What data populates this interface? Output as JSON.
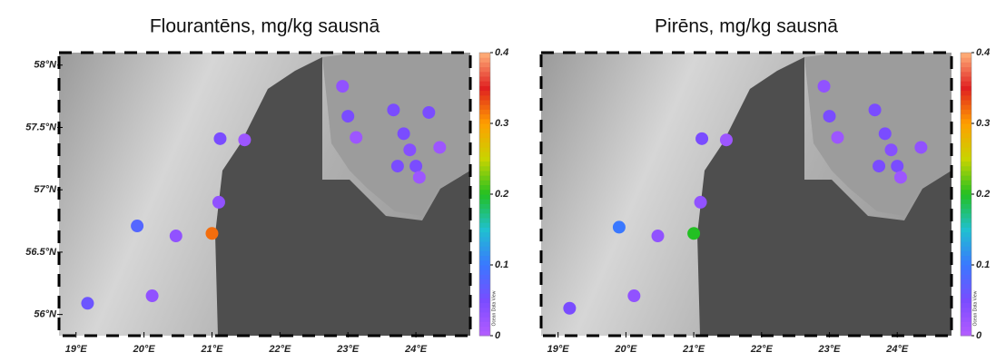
{
  "chart_data": [
    {
      "type": "scatter",
      "title": "Flourantēns, mg/kg sausnā",
      "x": [
        19.17,
        19.9,
        20.12,
        20.47,
        21.0,
        21.1,
        21.12,
        21.48,
        22.92,
        23.0,
        23.12,
        23.67,
        23.82,
        23.91,
        23.73,
        24.0,
        24.05,
        24.19,
        24.35
      ],
      "y": [
        56.09,
        56.71,
        56.15,
        56.63,
        56.65,
        56.9,
        57.41,
        57.4,
        57.83,
        57.59,
        57.42,
        57.64,
        57.45,
        57.32,
        57.19,
        57.19,
        57.1,
        57.62,
        57.34
      ],
      "values": [
        0.06,
        0.08,
        0.03,
        0.03,
        0.32,
        0.03,
        0.05,
        0.02,
        0.03,
        0.05,
        0.02,
        0.05,
        0.05,
        0.04,
        0.05,
        0.05,
        0.02,
        0.05,
        0.02
      ],
      "xlim": [
        18.75,
        24.8
      ],
      "ylim": [
        55.83,
        58.1
      ],
      "xticks": [
        {
          "value": 19,
          "label": "19°E"
        },
        {
          "value": 20,
          "label": "20°E"
        },
        {
          "value": 21,
          "label": "21°E"
        },
        {
          "value": 22,
          "label": "22°E"
        },
        {
          "value": 23,
          "label": "23°E"
        },
        {
          "value": 24,
          "label": "24°E"
        }
      ],
      "yticks": [
        {
          "value": 56,
          "label": "56°N"
        },
        {
          "value": 56.5,
          "label": "56.5°N"
        },
        {
          "value": 57,
          "label": "57°N"
        },
        {
          "value": 57.5,
          "label": "57.5°N"
        },
        {
          "value": 58,
          "label": "58°N"
        }
      ],
      "clim": [
        0,
        0.4
      ],
      "cticks": [
        0,
        0.1,
        0.2,
        0.3,
        0.4
      ],
      "colorscale": [
        "#b45cff",
        "#7a4cff",
        "#3a78ff",
        "#20c0d0",
        "#22c022",
        "#c8d400",
        "#ffa000",
        "#e02020",
        "#ffb27a"
      ],
      "colorbar_label": "Ocean Data View"
    },
    {
      "type": "scatter",
      "title": "Pirēns, mg/kg sausnā",
      "x": [
        19.17,
        19.9,
        20.12,
        20.47,
        21.0,
        21.1,
        21.12,
        21.48,
        22.92,
        23.0,
        23.12,
        23.67,
        23.82,
        23.91,
        23.73,
        24.0,
        24.05,
        24.35
      ],
      "y": [
        56.05,
        56.7,
        56.15,
        56.63,
        56.65,
        56.9,
        57.41,
        57.4,
        57.83,
        57.59,
        57.42,
        57.64,
        57.45,
        57.32,
        57.19,
        57.19,
        57.1,
        57.34
      ],
      "values": [
        0.05,
        0.1,
        0.03,
        0.03,
        0.2,
        0.03,
        0.05,
        0.02,
        0.03,
        0.05,
        0.02,
        0.05,
        0.05,
        0.04,
        0.05,
        0.05,
        0.02,
        0.03
      ],
      "xlim": [
        18.75,
        24.8
      ],
      "ylim": [
        55.83,
        58.1
      ],
      "xticks": [
        {
          "value": 19,
          "label": "19°E"
        },
        {
          "value": 20,
          "label": "20°E"
        },
        {
          "value": 21,
          "label": "21°E"
        },
        {
          "value": 22,
          "label": "22°E"
        },
        {
          "value": 23,
          "label": "23°E"
        },
        {
          "value": 24,
          "label": "24°E"
        }
      ],
      "clim": [
        0,
        0.4
      ],
      "cticks": [
        0,
        0.1,
        0.2,
        0.3,
        0.4
      ],
      "colorscale": [
        "#b45cff",
        "#7a4cff",
        "#3a78ff",
        "#20c0d0",
        "#22c022",
        "#c8d400",
        "#ffa000",
        "#e02020",
        "#ffb27a"
      ],
      "colorbar_label": "Ocean Data View"
    }
  ]
}
